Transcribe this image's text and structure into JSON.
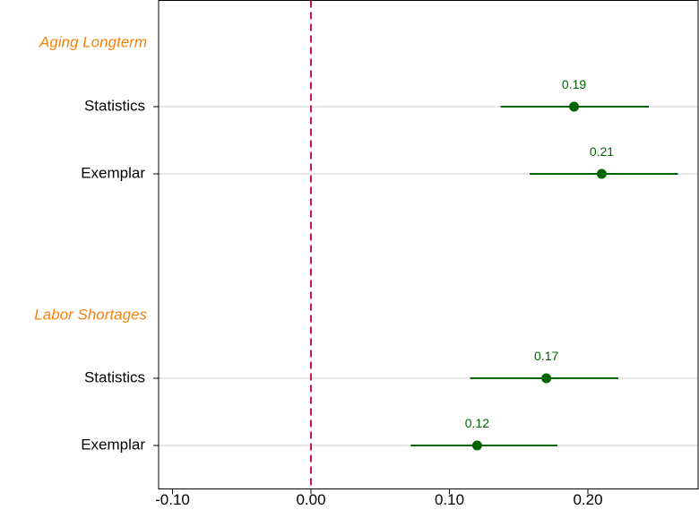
{
  "chart_data": {
    "type": "scatter",
    "subtype": "coefficient-plot",
    "orientation": "horizontal",
    "groups": [
      {
        "label": "Aging Longterm",
        "items": [
          {
            "label": "Statistics",
            "estimate": 0.19,
            "ci_low": 0.137,
            "ci_high": 0.244,
            "value_label": "0.19"
          },
          {
            "label": "Exemplar",
            "estimate": 0.21,
            "ci_low": 0.158,
            "ci_high": 0.265,
            "value_label": "0.21"
          }
        ]
      },
      {
        "label": "Labor Shortages",
        "items": [
          {
            "label": "Statistics",
            "estimate": 0.17,
            "ci_low": 0.115,
            "ci_high": 0.222,
            "value_label": "0.17"
          },
          {
            "label": "Exemplar",
            "estimate": 0.12,
            "ci_low": 0.072,
            "ci_high": 0.178,
            "value_label": "0.12"
          }
        ]
      }
    ],
    "xlim": [
      -0.115,
      0.27
    ],
    "xticks": [
      -0.1,
      0.0,
      0.1,
      0.2
    ],
    "xtick_labels": [
      "-0.10",
      "0.00",
      "0.10",
      "0.20"
    ],
    "reference_line": 0,
    "title": "",
    "xlabel": "",
    "ylabel": "",
    "grid": "horizontal at category rows",
    "legend": "none",
    "colors": {
      "marker": "#006400",
      "ci": "#006400",
      "value_label": "#006400",
      "reference_line": "#C8174E",
      "group_label": "#F5820F",
      "gridline": "#DDDDDD",
      "axis": "#000000"
    }
  }
}
